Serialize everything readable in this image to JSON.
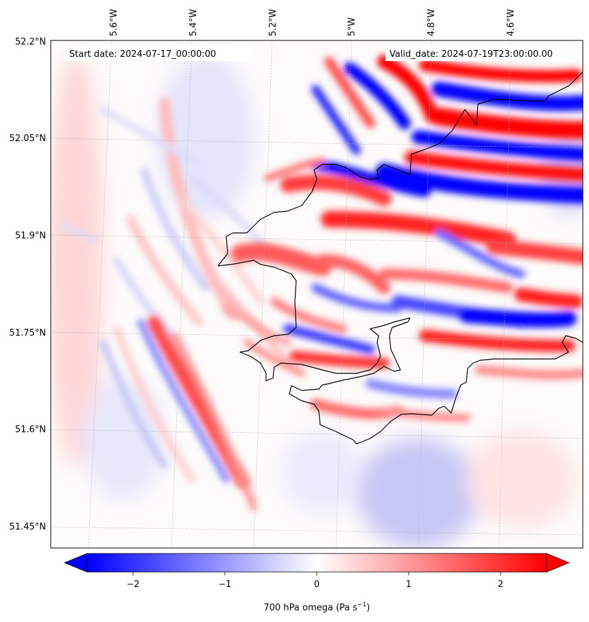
{
  "map": {
    "start_label": "Start date: 2024-07-17_00:00:00",
    "valid_label": "Valid_date: 2024-07-19T23:00:00.00",
    "lon_labels": [
      "5.6°W",
      "5.4°W",
      "5.2°W",
      "5°W",
      "4.8°W",
      "4.6°W"
    ],
    "lat_labels": [
      "52.2°N",
      "52.05°N",
      "51.9°N",
      "51.75°N",
      "51.6°N",
      "51.45°N"
    ],
    "field": "700 hPa omega",
    "colormap": "bwr",
    "colors": {
      "negative": "#0000ff",
      "zero": "#ffffff",
      "positive": "#ff0000",
      "coastline": "#000000",
      "gridline": "#b0b0b0"
    }
  },
  "colorbar": {
    "label_main": "700 hPa omega (Pa s",
    "label_exp": "−1",
    "label_close": ")",
    "range": [
      -2.5,
      2.5
    ],
    "extend": "both",
    "ticks": [
      {
        "value": -2,
        "label": "−2"
      },
      {
        "value": -1,
        "label": "−1"
      },
      {
        "value": 0,
        "label": "0"
      },
      {
        "value": 1,
        "label": "1"
      },
      {
        "value": 2,
        "label": "2"
      }
    ]
  }
}
